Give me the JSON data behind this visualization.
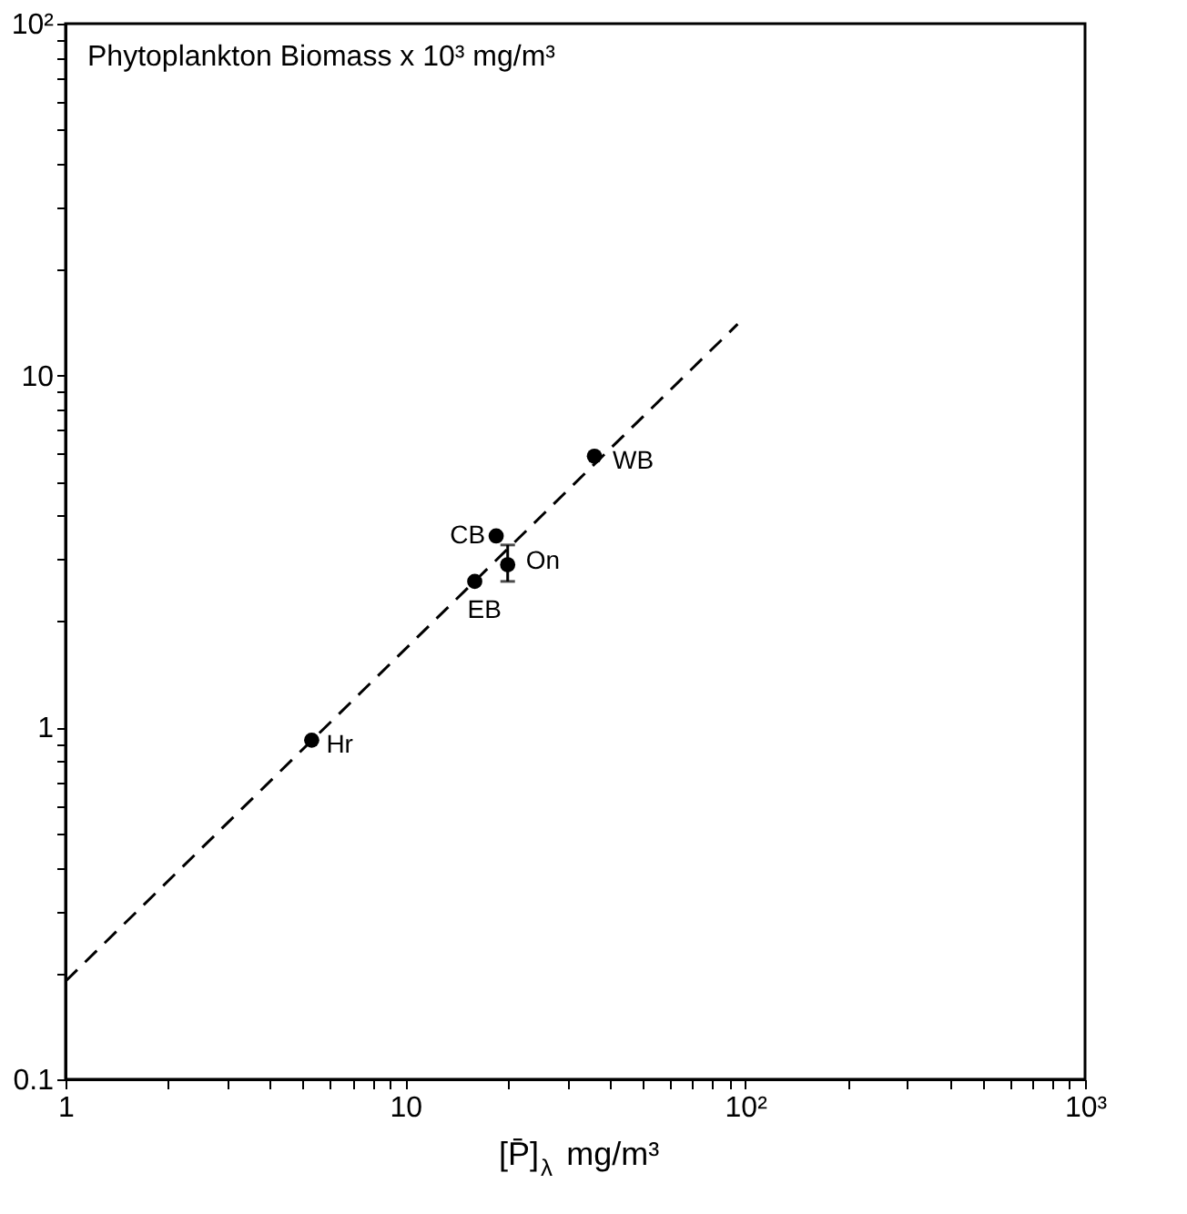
{
  "chart_data": {
    "type": "scatter",
    "ylabel": "Phytoplankton Biomass x 10³ mg/m³",
    "xlabel": "[P̄]$_{λ}$ mg/m³",
    "log": "xy",
    "grid": false,
    "xlim": [
      1,
      1000
    ],
    "ylim": [
      0.1,
      100
    ],
    "xticks": [
      1,
      {
        "value": 2,
        "label": null
      },
      {
        "value": 3,
        "label": null
      },
      {
        "value": 4,
        "label": null
      },
      {
        "value": 5,
        "label": null
      },
      {
        "value": 6,
        "label": null
      },
      {
        "value": 7,
        "label": null
      },
      {
        "value": 8,
        "label": null
      },
      {
        "value": 9,
        "label": null
      },
      10,
      {
        "value": 20,
        "label": null
      },
      {
        "value": 30,
        "label": null
      },
      {
        "value": 40,
        "label": null
      },
      {
        "value": 50,
        "label": null
      },
      {
        "value": 60,
        "label": null
      },
      {
        "value": 70,
        "label": null
      },
      {
        "value": 80,
        "label": null
      },
      {
        "value": 90,
        "label": null
      },
      {
        "value": 100,
        "label": "10²"
      },
      {
        "value": 200,
        "label": null
      },
      {
        "value": 300,
        "label": null
      },
      {
        "value": 400,
        "label": null
      },
      {
        "value": 500,
        "label": null
      },
      {
        "value": 600,
        "label": null
      },
      {
        "value": 700,
        "label": null
      },
      {
        "value": 800,
        "label": null
      },
      {
        "value": 900,
        "label": null
      },
      {
        "value": 1000,
        "label": "10³"
      }
    ],
    "yticks": [
      0.1,
      {
        "value": 0.2,
        "label": null
      },
      {
        "value": 0.3,
        "label": null
      },
      {
        "value": 0.4,
        "label": null
      },
      {
        "value": 0.5,
        "label": null
      },
      {
        "value": 0.6,
        "label": null
      },
      {
        "value": 0.7,
        "label": null
      },
      {
        "value": 0.8,
        "label": null
      },
      {
        "value": 0.9,
        "label": null
      },
      1,
      {
        "value": 2,
        "label": null
      },
      {
        "value": 3,
        "label": null
      },
      {
        "value": 4,
        "label": null
      },
      {
        "value": 5,
        "label": null
      },
      {
        "value": 6,
        "label": null
      },
      {
        "value": 7,
        "label": null
      },
      {
        "value": 8,
        "label": null
      },
      {
        "value": 9,
        "label": null
      },
      10,
      {
        "value": 20,
        "label": null
      },
      {
        "value": 30,
        "label": null
      },
      {
        "value": 40,
        "label": null
      },
      {
        "value": 50,
        "label": null
      },
      {
        "value": 60,
        "label": null
      },
      {
        "value": 70,
        "label": null
      },
      {
        "value": 80,
        "label": null
      },
      {
        "value": 90,
        "label": null
      },
      {
        "value": 100,
        "label": "10²"
      }
    ],
    "series": [
      {
        "type": "scatter",
        "color": "#000000",
        "marker": "circle",
        "x": [
          5.3,
          16,
          18.5,
          20,
          36
        ],
        "values": [
          0.92,
          2.6,
          3.5,
          2.9,
          5.9
        ],
        "errors": [
          null,
          null,
          null,
          [
            2.6,
            3.3
          ],
          null
        ]
      },
      {
        "type": "line",
        "color": "#000000",
        "marker": "none",
        "line_style": "dashed",
        "x": [
          1,
          95
        ],
        "values": [
          0.19,
          14
        ]
      }
    ],
    "annotations": [
      {
        "text": "Hr",
        "x": 5.3,
        "y": 0.92
      },
      {
        "text": "EB",
        "x": 16,
        "y": 2.6
      },
      {
        "text": "CB",
        "x": 18.5,
        "y": 3.5
      },
      {
        "text": "On",
        "x": 20,
        "y": 2.9
      },
      {
        "text": "WB",
        "x": 36,
        "y": 5.9
      }
    ]
  }
}
